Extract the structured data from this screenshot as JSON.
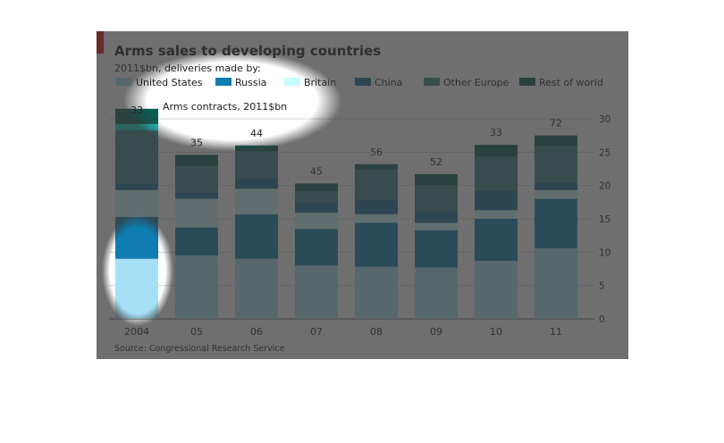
{
  "chart_data": {
    "type": "bar",
    "stacked": true,
    "title": "Arms sales to developing countries",
    "subtitle": "2011$bn, deliveries made by:",
    "contracts_label": "Arms contracts, 2011$bn",
    "source": "Source: Congressional Research Service",
    "categories": [
      "2004",
      "05",
      "06",
      "07",
      "08",
      "09",
      "10",
      "11"
    ],
    "contracts": [
      33,
      35,
      44,
      45,
      56,
      52,
      33,
      72
    ],
    "ylim": [
      0,
      30
    ],
    "yticks": [
      0,
      5,
      10,
      15,
      20,
      25,
      30
    ],
    "grid": true,
    "yaxis_side": "right",
    "legend_position": "top",
    "series": [
      {
        "name": "United States",
        "color": "#a6e0f6",
        "values": [
          9.0,
          9.5,
          9.0,
          8.0,
          7.8,
          7.7,
          8.7,
          10.6
        ]
      },
      {
        "name": "Russia",
        "color": "#0f7db1",
        "values": [
          6.3,
          4.2,
          6.7,
          5.5,
          6.6,
          5.6,
          6.3,
          7.4
        ]
      },
      {
        "name": "Britain",
        "color": "#c8fbff",
        "values": [
          4.0,
          4.3,
          3.8,
          2.4,
          1.3,
          1.1,
          1.3,
          1.3
        ]
      },
      {
        "name": "China",
        "color": "#176b96",
        "values": [
          1.0,
          1.0,
          1.6,
          1.6,
          2.2,
          1.6,
          3.0,
          1.3
        ]
      },
      {
        "name": "Other Europe",
        "color": "#3b7d8a",
        "values": [
          8.9,
          3.9,
          4.0,
          1.6,
          4.5,
          4.0,
          5.0,
          5.3
        ]
      },
      {
        "name": "Rest of world",
        "color": "#0a5e52",
        "values": [
          2.3,
          1.7,
          0.9,
          1.2,
          0.8,
          1.7,
          1.8,
          1.6
        ]
      }
    ],
    "highlight": {
      "color": "#12e0d8"
    }
  },
  "accent": {
    "brand_red": "#e3120b"
  }
}
